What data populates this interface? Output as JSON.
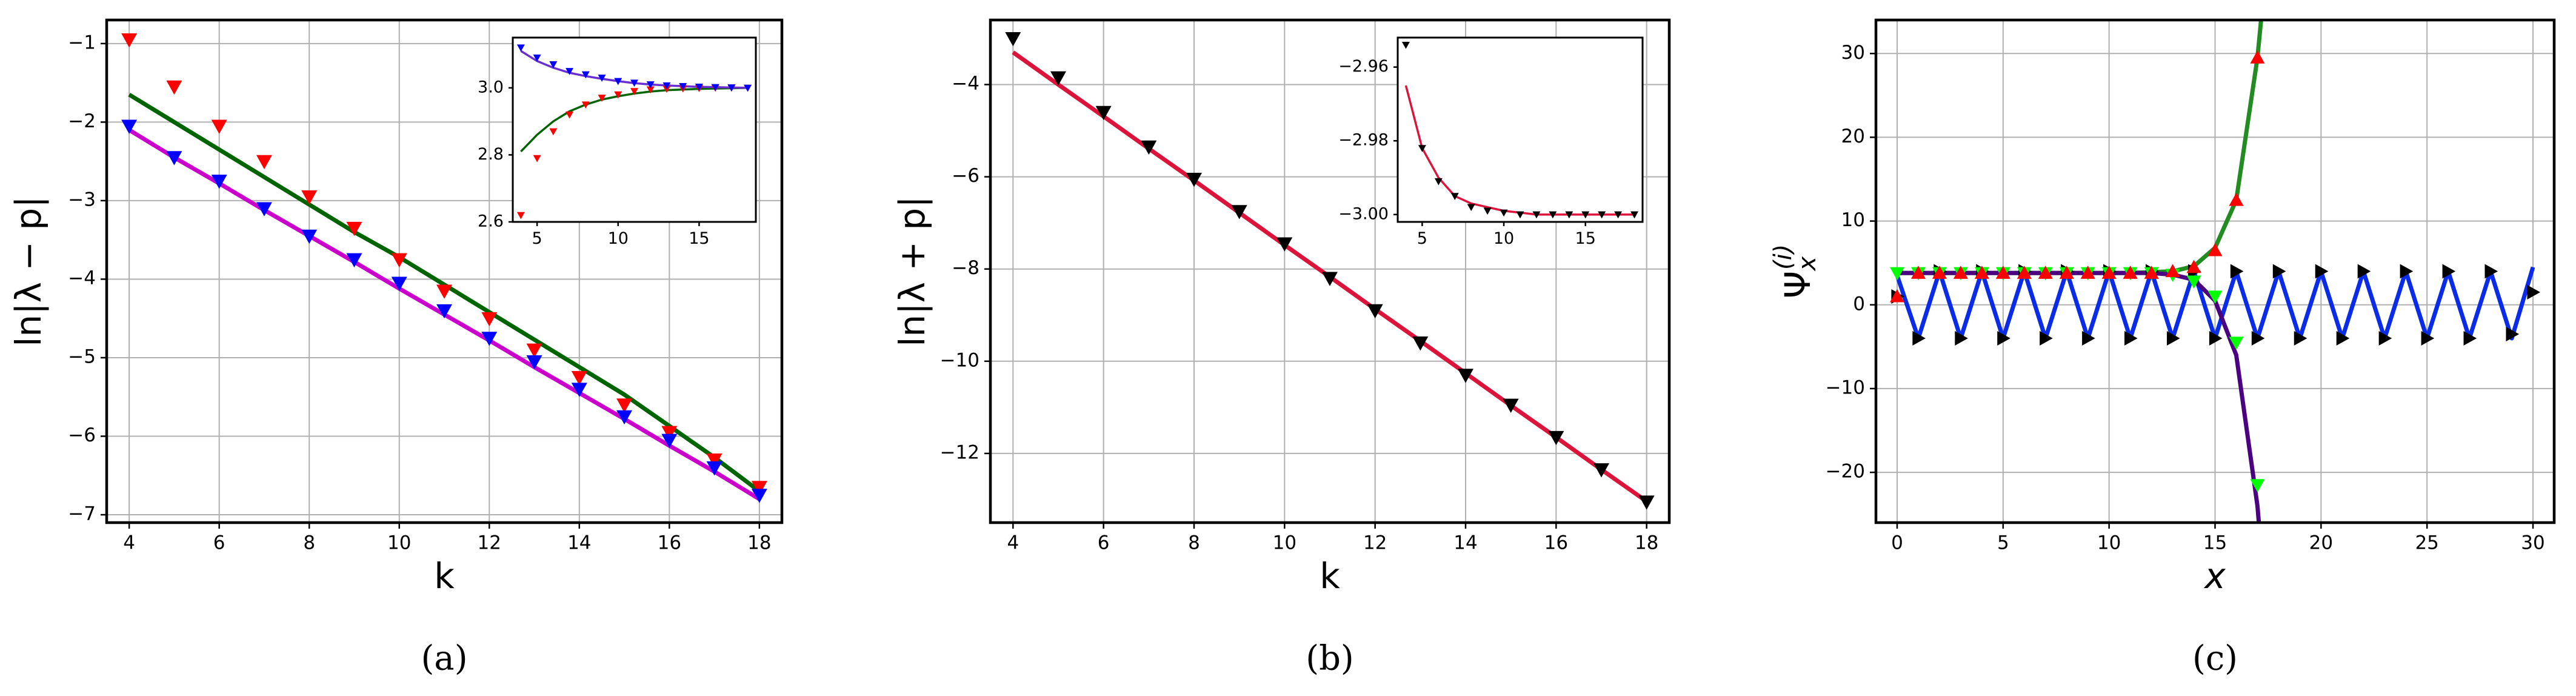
{
  "chart_data": [
    {
      "type": "line",
      "label": "(a)",
      "xlabel": "k",
      "ylabel": "ln|λ − p|",
      "grid": true,
      "xlim": [
        3.5,
        18.5
      ],
      "ylim": [
        -7.1,
        -0.7
      ],
      "xticks": [
        4,
        6,
        8,
        10,
        12,
        14,
        16,
        18
      ],
      "yticks": [
        {
          "value": -7,
          "label": "−7"
        },
        {
          "value": -6,
          "label": "−6"
        },
        {
          "value": -5,
          "label": "−5"
        },
        {
          "value": -4,
          "label": "−4"
        },
        {
          "value": -3,
          "label": "−3"
        },
        {
          "value": -2,
          "label": "−2"
        },
        {
          "value": -1,
          "label": "−1"
        }
      ],
      "x": [
        4,
        5,
        6,
        7,
        8,
        9,
        10,
        11,
        12,
        13,
        14,
        15,
        16,
        17,
        18
      ],
      "series": [
        {
          "color": "#006400",
          "values": [
            -1.65,
            -2.0,
            -2.35,
            -2.7,
            -3.05,
            -3.4,
            -3.72,
            -4.07,
            -4.42,
            -4.77,
            -5.12,
            -5.47,
            -5.87,
            -6.27,
            -6.7
          ]
        },
        {
          "color": "#cc00cc",
          "values": [
            -2.1,
            -2.45,
            -2.78,
            -3.12,
            -3.45,
            -3.78,
            -4.12,
            -4.45,
            -4.78,
            -5.12,
            -5.45,
            -5.78,
            -6.12,
            -6.45,
            -6.8
          ]
        },
        {
          "color": "#ff0000",
          "marker": "v",
          "values": [
            -0.95,
            -1.55,
            -2.05,
            -2.5,
            -2.95,
            -3.35,
            -3.75,
            -4.15,
            -4.5,
            -4.9,
            -5.25,
            -5.6,
            -5.95,
            -6.3,
            -6.65
          ]
        },
        {
          "color": "#0000ff",
          "marker": "v",
          "values": [
            -2.05,
            -2.45,
            -2.75,
            -3.1,
            -3.45,
            -3.75,
            -4.05,
            -4.4,
            -4.75,
            -5.05,
            -5.4,
            -5.75,
            -6.05,
            -6.4,
            -6.75
          ]
        }
      ]
    },
    {
      "type": "line",
      "grid": false,
      "xlim": [
        3.5,
        18.5
      ],
      "ylim": [
        2.6,
        3.15
      ],
      "xticks": [
        5,
        10,
        15
      ],
      "yticks": [
        2.6,
        2.8,
        {
          "value": 3.0,
          "label": "3.0"
        }
      ],
      "x": [
        4,
        5,
        6,
        7,
        8,
        9,
        10,
        11,
        12,
        13,
        14,
        15,
        16,
        17,
        18
      ],
      "series": [
        {
          "color": "#006400",
          "values": [
            2.81,
            2.86,
            2.9,
            2.93,
            2.95,
            2.965,
            2.975,
            2.983,
            2.989,
            2.993,
            2.995,
            2.997,
            2.998,
            2.999,
            3.0
          ]
        },
        {
          "color": "#6a2fd0",
          "values": [
            3.11,
            3.08,
            3.06,
            3.045,
            3.035,
            3.027,
            3.02,
            3.014,
            3.01,
            3.007,
            3.005,
            3.003,
            3.002,
            3.001,
            3.0
          ]
        },
        {
          "color": "#ff0000",
          "marker": "v",
          "values": [
            2.62,
            2.79,
            2.87,
            2.92,
            2.95,
            2.97,
            2.98,
            2.99,
            2.995,
            2.997,
            2.998,
            2.999,
            3.0,
            3.0,
            3.0
          ]
        },
        {
          "color": "#0000ff",
          "marker": "v",
          "values": [
            3.12,
            3.09,
            3.07,
            3.05,
            3.04,
            3.03,
            3.02,
            3.015,
            3.01,
            3.007,
            3.005,
            3.003,
            3.002,
            3.001,
            3.0
          ]
        }
      ]
    },
    {
      "type": "line",
      "label": "(b)",
      "xlabel": "k",
      "ylabel": "ln|λ + p|",
      "grid": true,
      "xlim": [
        3.5,
        18.5
      ],
      "ylim": [
        -13.5,
        -2.6
      ],
      "xticks": [
        4,
        6,
        8,
        10,
        12,
        14,
        16,
        18
      ],
      "yticks": [
        {
          "value": -12,
          "label": "−12"
        },
        {
          "value": -10,
          "label": "−10"
        },
        {
          "value": -8,
          "label": "−8"
        },
        {
          "value": -6,
          "label": "−6"
        },
        {
          "value": -4,
          "label": "−4"
        }
      ],
      "x": [
        4,
        5,
        6,
        7,
        8,
        9,
        10,
        11,
        12,
        13,
        14,
        15,
        16,
        17,
        18
      ],
      "series": [
        {
          "color": "#dc143c",
          "values": [
            -3.3,
            -4.0,
            -4.69,
            -5.39,
            -6.08,
            -6.78,
            -7.48,
            -8.17,
            -8.87,
            -9.56,
            -10.26,
            -10.96,
            -11.65,
            -12.35,
            -13.04
          ]
        },
        {
          "color": "#000000",
          "marker": "v",
          "values": [
            -3.0,
            -3.85,
            -4.6,
            -5.35,
            -6.05,
            -6.75,
            -7.45,
            -8.2,
            -8.9,
            -9.6,
            -10.3,
            -10.95,
            -11.65,
            -12.35,
            -13.05
          ]
        }
      ]
    },
    {
      "type": "line",
      "grid": false,
      "xlim": [
        3.5,
        18.5
      ],
      "ylim": [
        -3.002,
        -2.952
      ],
      "xticks": [
        5,
        10,
        15
      ],
      "yticks": [
        {
          "value": -3.0,
          "label": "−3.00"
        },
        {
          "value": -2.98,
          "label": "−2.98"
        },
        {
          "value": -2.96,
          "label": "−2.96"
        }
      ],
      "x": [
        4,
        5,
        6,
        7,
        8,
        9,
        10,
        11,
        12,
        13,
        14,
        15,
        16,
        17,
        18
      ],
      "series": [
        {
          "color": "#dc143c",
          "values": [
            -2.965,
            -2.982,
            -2.99,
            -2.995,
            -2.997,
            -2.998,
            -2.999,
            -2.9995,
            -3.0,
            -3.0,
            -3.0,
            -3.0,
            -3.0,
            -3.0,
            -3.0
          ]
        },
        {
          "color": "#000000",
          "marker": "v",
          "values": [
            -2.954,
            -2.982,
            -2.991,
            -2.995,
            -2.998,
            -2.999,
            -2.9995,
            -3.0,
            -3.0,
            -3.0,
            -3.0,
            -3.0,
            -3.0,
            -3.0,
            -3.0
          ]
        }
      ]
    },
    {
      "type": "line",
      "label": "(c)",
      "xlabel": "x",
      "ylabel": {
        "base": "Ψ",
        "sub": "x",
        "sup": "(i)"
      },
      "grid": true,
      "xlim": [
        -1,
        31
      ],
      "ylim": [
        -26,
        34
      ],
      "xticks": [
        0,
        5,
        10,
        15,
        20,
        25,
        30
      ],
      "yticks": [
        {
          "value": -20,
          "label": "−20"
        },
        {
          "value": -10,
          "label": "−10"
        },
        0,
        10,
        20,
        30
      ],
      "series": [
        {
          "color": "#0a2be8",
          "x": [
            0,
            1,
            2,
            3,
            4,
            5,
            6,
            7,
            8,
            9,
            10,
            11,
            12,
            13,
            14,
            15,
            16,
            17,
            18,
            19,
            20,
            21,
            22,
            23,
            24,
            25,
            26,
            27,
            28,
            29,
            30
          ],
          "values": [
            3.5,
            -4,
            4,
            -4,
            4,
            -4,
            4,
            -4,
            4,
            -4,
            4,
            -4,
            4,
            -4,
            4,
            -4,
            4,
            -4,
            4,
            -4,
            4,
            -4,
            4,
            -4,
            4,
            -4,
            4,
            -4,
            4,
            -4,
            4.5
          ]
        },
        {
          "color": "#228b22",
          "x": [
            0,
            1,
            2,
            3,
            4,
            5,
            6,
            7,
            8,
            9,
            10,
            11,
            12,
            13,
            14,
            15,
            16,
            17,
            17.4
          ],
          "values": [
            3.8,
            3.8,
            3.8,
            3.8,
            3.8,
            3.8,
            3.8,
            3.8,
            3.8,
            3.8,
            3.8,
            3.8,
            3.9,
            4.0,
            4.6,
            6.8,
            12.5,
            29.5,
            40
          ]
        },
        {
          "color": "#4b0082",
          "x": [
            0,
            1,
            2,
            3,
            4,
            5,
            6,
            7,
            8,
            9,
            10,
            11,
            12,
            13,
            14,
            15,
            16,
            17,
            17.2
          ],
          "values": [
            3.8,
            3.8,
            3.8,
            3.8,
            3.8,
            3.8,
            3.8,
            3.8,
            3.8,
            3.8,
            3.8,
            3.8,
            3.8,
            3.6,
            3.0,
            0.5,
            -6,
            -24,
            -30
          ]
        },
        {
          "color": "#000000",
          "marker": ">",
          "x": [
            0,
            1,
            2,
            3,
            4,
            5,
            6,
            7,
            8,
            9,
            10,
            11,
            12,
            13,
            14,
            15,
            16,
            17,
            18,
            19,
            20,
            21,
            22,
            23,
            24,
            25,
            26,
            27,
            28,
            29,
            30
          ],
          "values": [
            1,
            -4,
            4,
            -4,
            4,
            -4,
            4,
            -4,
            4,
            -4,
            4,
            -4,
            4,
            -4,
            4,
            -4,
            4,
            -4,
            4,
            -4,
            4,
            -4,
            4,
            -4,
            4,
            -4,
            4,
            -4,
            4,
            -3.5,
            1.5
          ]
        },
        {
          "color": "#00ff00",
          "marker": "v",
          "x": [
            0,
            1,
            2,
            3,
            4,
            5,
            6,
            7,
            8,
            9,
            10,
            11,
            12,
            13,
            14,
            15,
            16,
            17
          ],
          "values": [
            3.8,
            3.8,
            3.8,
            3.8,
            3.8,
            3.8,
            3.8,
            3.8,
            3.8,
            3.8,
            3.8,
            3.8,
            3.8,
            3.6,
            2.8,
            1,
            -4.5,
            -21.5
          ]
        },
        {
          "color": "#ff0000",
          "marker": "^",
          "x": [
            0,
            1,
            2,
            3,
            4,
            5,
            6,
            7,
            8,
            9,
            10,
            11,
            12,
            13,
            14,
            15,
            16,
            17
          ],
          "values": [
            1,
            3.8,
            3.8,
            3.8,
            3.8,
            3.8,
            3.8,
            3.8,
            3.8,
            3.8,
            3.8,
            3.8,
            3.8,
            4.0,
            4.5,
            6.5,
            12.5,
            29.5
          ]
        }
      ]
    }
  ]
}
